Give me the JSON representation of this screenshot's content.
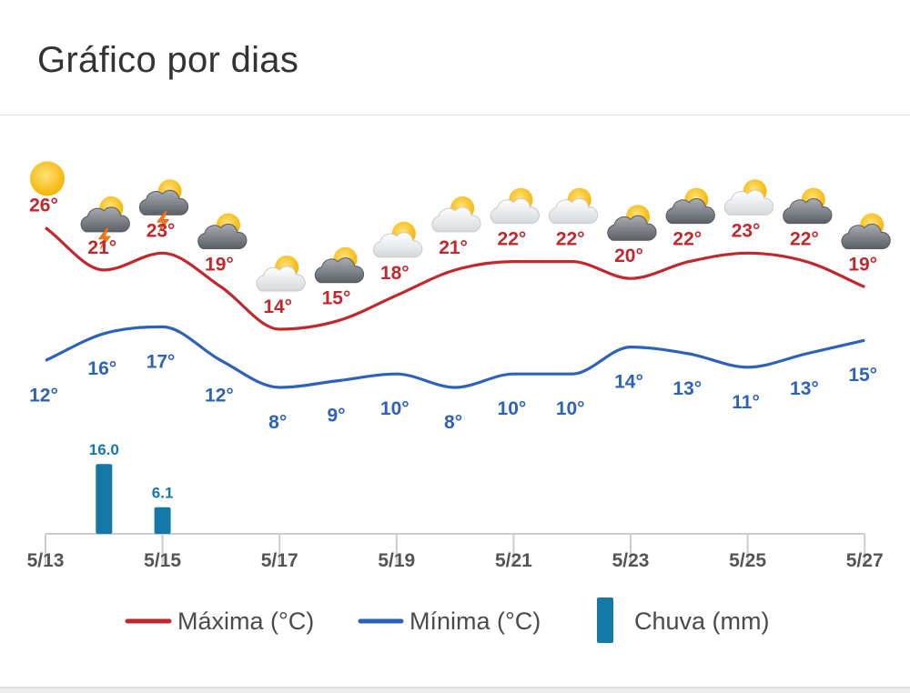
{
  "header": {
    "title": "Gráfico por dias"
  },
  "colors": {
    "max": "#c0282d",
    "min": "#2e62ba",
    "rain": "#1479a8",
    "axis": "#cccccc",
    "tick_text": "#555555"
  },
  "chart_data": {
    "type": "line",
    "categories": [
      "5/13",
      "5/14",
      "5/15",
      "5/16",
      "5/17",
      "5/18",
      "5/19",
      "5/20",
      "5/21",
      "5/22",
      "5/23",
      "5/24",
      "5/25",
      "5/26",
      "5/27"
    ],
    "x_tick_labels": [
      "5/13",
      "5/15",
      "5/17",
      "5/19",
      "5/21",
      "5/23",
      "5/25",
      "5/27"
    ],
    "weather_icons": [
      "sun",
      "partly-cloudy-storm",
      "partly-cloudy-storm",
      "partly-cloudy-dark",
      "partly-cloudy",
      "partly-cloudy-dark",
      "partly-cloudy",
      "partly-cloudy",
      "partly-cloudy",
      "partly-cloudy",
      "partly-cloudy-dark",
      "partly-cloudy-dark",
      "partly-cloudy",
      "partly-cloudy-dark",
      "partly-cloudy-dark"
    ],
    "series": [
      {
        "name": "Máxima (°C)",
        "values": [
          26,
          21,
          23,
          19,
          14,
          15,
          18,
          21,
          22,
          22,
          20,
          22,
          23,
          22,
          19
        ]
      },
      {
        "name": "Mínima (°C)",
        "values": [
          12,
          16,
          17,
          12,
          8,
          9,
          10,
          8,
          10,
          10,
          14,
          13,
          11,
          13,
          15
        ]
      },
      {
        "name": "Chuva (mm)",
        "type": "bar",
        "values": [
          null,
          16.0,
          6.1,
          null,
          null,
          null,
          null,
          null,
          null,
          null,
          null,
          null,
          null,
          null,
          null
        ],
        "labels": [
          "",
          "16.0",
          "6.1",
          "",
          "",
          "",
          "",
          "",
          "",
          "",
          "",
          "",
          "",
          "",
          ""
        ]
      }
    ],
    "legend": {
      "position": "bottom",
      "entries": [
        "Máxima (°C)",
        "Mínima (°C)",
        "Chuva (mm)"
      ]
    }
  }
}
